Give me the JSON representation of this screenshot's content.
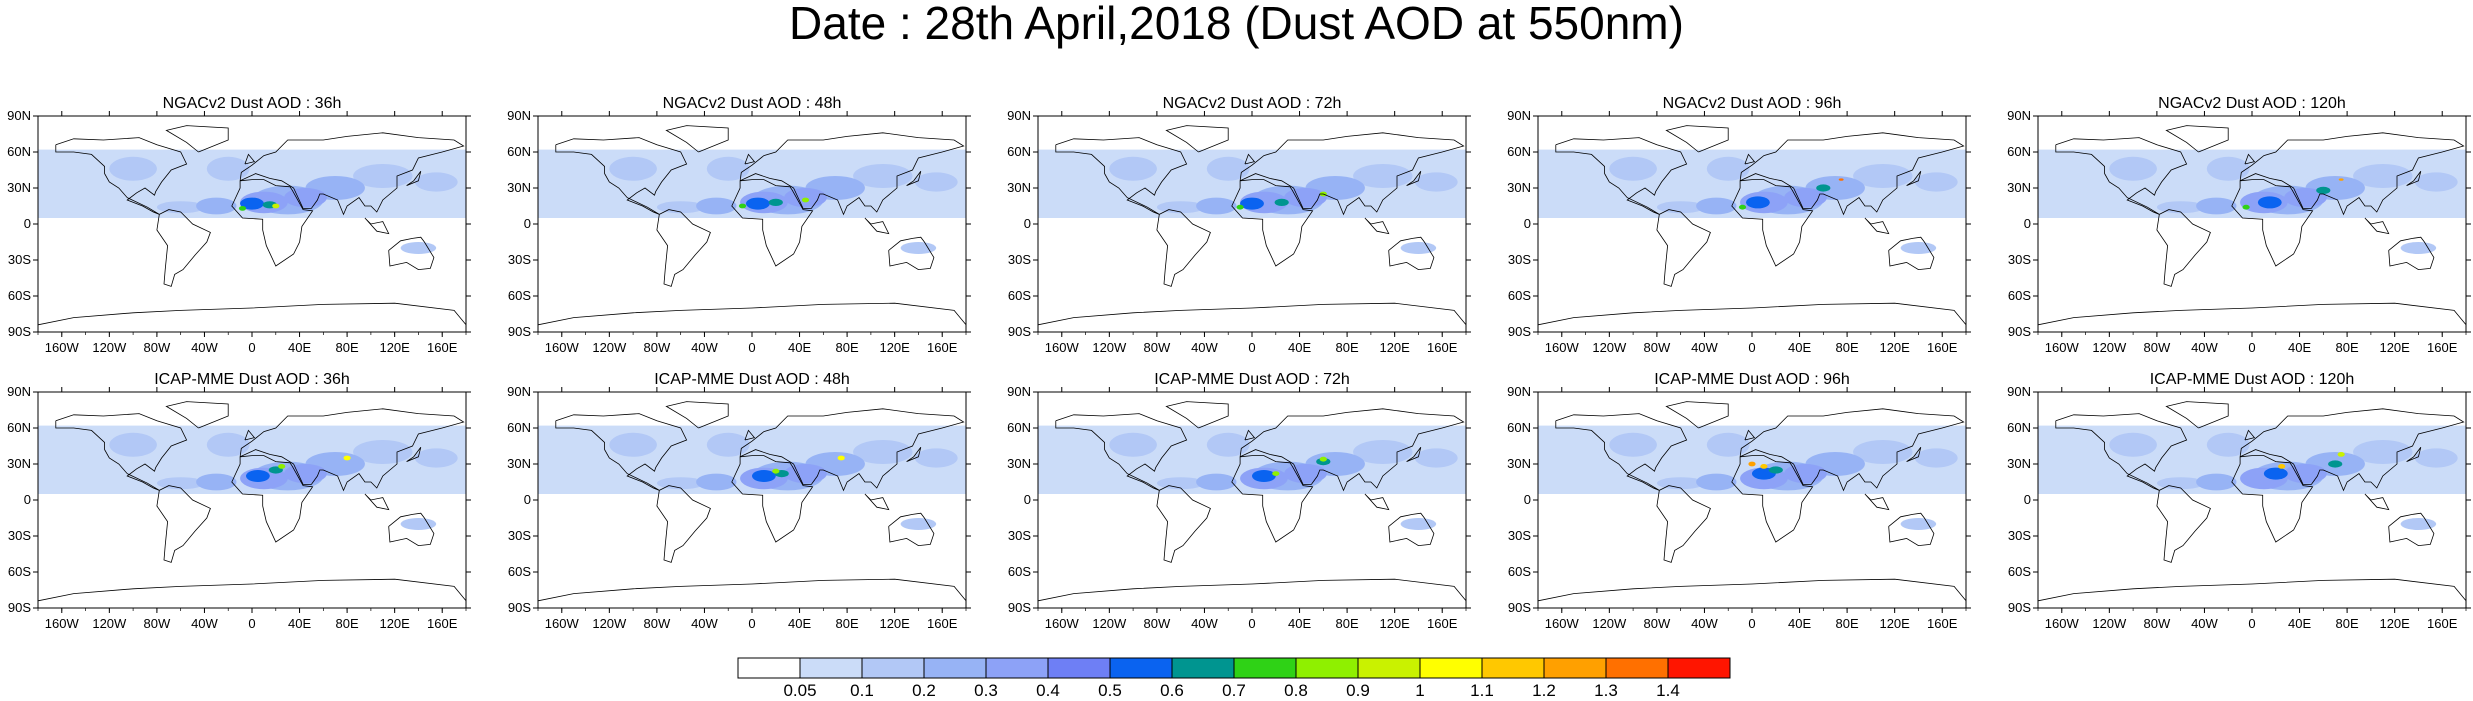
{
  "title": "Date : 28th April,2018 (Dust AOD at 550nm)",
  "icons": [
    "world-map"
  ],
  "chart_data": {
    "type": "heatmap",
    "rows": [
      {
        "model": "NGACv2",
        "titles": [
          "NGACv2 Dust AOD : 36h",
          "NGACv2 Dust AOD : 48h",
          "NGACv2 Dust AOD : 72h",
          "NGACv2 Dust AOD : 96h",
          "NGACv2 Dust AOD : 120h"
        ]
      },
      {
        "model": "ICAP-MME",
        "titles": [
          "ICAP-MME Dust AOD : 36h",
          "ICAP-MME Dust AOD : 48h",
          "ICAP-MME Dust AOD : 72h",
          "ICAP-MME Dust AOD : 96h",
          "ICAP-MME Dust AOD : 120h"
        ]
      }
    ],
    "forecast_hours": [
      36,
      48,
      72,
      96,
      120
    ],
    "lat_ticks": [
      "90N",
      "60N",
      "30N",
      "0",
      "30S",
      "60S",
      "90S"
    ],
    "lat_values": [
      90,
      60,
      30,
      0,
      -30,
      -60,
      -90
    ],
    "lon_ticks": [
      "160W",
      "120W",
      "80W",
      "40W",
      "0",
      "40E",
      "80E",
      "120E",
      "160E"
    ],
    "lon_values": [
      -160,
      -120,
      -80,
      -40,
      0,
      40,
      80,
      120,
      160
    ],
    "xlim": [
      -180,
      180
    ],
    "ylim": [
      -90,
      90
    ],
    "colorbar": {
      "labels": [
        "0.05",
        "0.1",
        "0.2",
        "0.3",
        "0.4",
        "0.5",
        "0.6",
        "0.7",
        "0.8",
        "0.9",
        "1",
        "1.1",
        "1.2",
        "1.3",
        "1.4"
      ],
      "colors": [
        "#ffffff",
        "#cbdcf8",
        "#b2c8f6",
        "#97b3f5",
        "#8da2f7",
        "#6e7ff5",
        "#0a63f0",
        "#009590",
        "#2fd216",
        "#8ff000",
        "#c9f200",
        "#ffff00",
        "#ffc800",
        "#ffa000",
        "#ff7000",
        "#ff1500"
      ]
    },
    "plumes": [
      [
        [
          [
            0.1,
            -100,
            46,
            20,
            10
          ],
          [
            0.1,
            -20,
            46,
            18,
            10
          ],
          [
            0.1,
            110,
            40,
            25,
            10
          ],
          [
            0.1,
            155,
            35,
            18,
            8
          ],
          [
            0.1,
            -60,
            14,
            20,
            5
          ],
          [
            0.2,
            -30,
            15,
            17,
            7
          ],
          [
            0.2,
            30,
            20,
            30,
            12
          ],
          [
            0.2,
            70,
            30,
            25,
            10
          ],
          [
            0.3,
            10,
            18,
            20,
            9
          ],
          [
            0.3,
            45,
            22,
            18,
            8
          ],
          [
            0.5,
            0,
            17,
            10,
            5
          ],
          [
            0.6,
            15,
            16,
            6,
            3
          ],
          [
            0.7,
            -8,
            13,
            3,
            2
          ],
          [
            0.9,
            20,
            15,
            3,
            2
          ],
          [
            0.1,
            140,
            -20,
            15,
            5
          ]
        ],
        [
          [
            0.1,
            -100,
            46,
            20,
            10
          ],
          [
            0.1,
            -20,
            46,
            18,
            10
          ],
          [
            0.1,
            110,
            40,
            25,
            10
          ],
          [
            0.1,
            155,
            35,
            18,
            8
          ],
          [
            0.1,
            -60,
            14,
            20,
            5
          ],
          [
            0.2,
            -30,
            15,
            17,
            7
          ],
          [
            0.2,
            30,
            20,
            30,
            12
          ],
          [
            0.2,
            70,
            30,
            25,
            10
          ],
          [
            0.3,
            10,
            18,
            20,
            9
          ],
          [
            0.3,
            45,
            22,
            18,
            8
          ],
          [
            0.5,
            5,
            17,
            10,
            5
          ],
          [
            0.6,
            20,
            18,
            6,
            3
          ],
          [
            0.7,
            -8,
            15,
            3,
            2
          ],
          [
            0.8,
            45,
            20,
            3,
            2
          ],
          [
            0.1,
            140,
            -20,
            15,
            5
          ]
        ],
        [
          [
            0.1,
            -100,
            46,
            20,
            10
          ],
          [
            0.1,
            -20,
            46,
            18,
            10
          ],
          [
            0.1,
            110,
            40,
            25,
            10
          ],
          [
            0.1,
            155,
            35,
            18,
            8
          ],
          [
            0.1,
            -60,
            14,
            20,
            5
          ],
          [
            0.2,
            -30,
            15,
            17,
            7
          ],
          [
            0.2,
            30,
            20,
            30,
            12
          ],
          [
            0.2,
            70,
            30,
            25,
            10
          ],
          [
            0.3,
            10,
            18,
            20,
            9
          ],
          [
            0.3,
            45,
            22,
            18,
            8
          ],
          [
            0.5,
            0,
            17,
            10,
            5
          ],
          [
            0.6,
            25,
            18,
            6,
            3
          ],
          [
            0.7,
            -10,
            14,
            3,
            2
          ],
          [
            0.8,
            60,
            25,
            3,
            2
          ],
          [
            0.1,
            140,
            -20,
            15,
            5
          ]
        ],
        [
          [
            0.1,
            -100,
            46,
            20,
            10
          ],
          [
            0.1,
            -20,
            46,
            18,
            10
          ],
          [
            0.1,
            110,
            40,
            25,
            10
          ],
          [
            0.1,
            155,
            35,
            18,
            8
          ],
          [
            0.1,
            -60,
            14,
            20,
            5
          ],
          [
            0.2,
            -30,
            15,
            17,
            7
          ],
          [
            0.2,
            30,
            20,
            30,
            12
          ],
          [
            0.2,
            70,
            30,
            25,
            10
          ],
          [
            0.3,
            10,
            18,
            20,
            9
          ],
          [
            0.3,
            45,
            22,
            18,
            8
          ],
          [
            0.5,
            5,
            18,
            10,
            5
          ],
          [
            0.6,
            60,
            30,
            6,
            3
          ],
          [
            0.7,
            -8,
            14,
            3,
            2
          ],
          [
            1.3,
            75,
            37,
            2,
            1
          ],
          [
            0.1,
            140,
            -20,
            15,
            5
          ]
        ],
        [
          [
            0.1,
            -100,
            46,
            20,
            10
          ],
          [
            0.1,
            -20,
            46,
            18,
            10
          ],
          [
            0.1,
            110,
            40,
            25,
            10
          ],
          [
            0.1,
            155,
            35,
            18,
            8
          ],
          [
            0.1,
            -60,
            14,
            20,
            5
          ],
          [
            0.2,
            -30,
            15,
            17,
            7
          ],
          [
            0.2,
            30,
            20,
            30,
            12
          ],
          [
            0.2,
            70,
            30,
            25,
            10
          ],
          [
            0.3,
            10,
            18,
            20,
            9
          ],
          [
            0.3,
            45,
            22,
            18,
            8
          ],
          [
            0.5,
            15,
            18,
            10,
            5
          ],
          [
            0.6,
            60,
            28,
            6,
            3
          ],
          [
            0.7,
            -5,
            14,
            3,
            2
          ],
          [
            1.2,
            75,
            37,
            2,
            1
          ],
          [
            0.1,
            140,
            -20,
            15,
            5
          ]
        ]
      ],
      [
        [
          [
            0.1,
            -100,
            46,
            20,
            10
          ],
          [
            0.1,
            -20,
            46,
            18,
            10
          ],
          [
            0.1,
            110,
            40,
            25,
            10
          ],
          [
            0.1,
            155,
            35,
            18,
            8
          ],
          [
            0.1,
            -60,
            14,
            20,
            5
          ],
          [
            0.2,
            -30,
            15,
            17,
            7
          ],
          [
            0.2,
            30,
            20,
            30,
            12
          ],
          [
            0.2,
            70,
            30,
            25,
            10
          ],
          [
            0.3,
            10,
            18,
            20,
            9
          ],
          [
            0.3,
            45,
            22,
            18,
            8
          ],
          [
            0.5,
            5,
            20,
            10,
            5
          ],
          [
            0.6,
            20,
            25,
            6,
            3
          ],
          [
            0.8,
            25,
            28,
            3,
            2
          ],
          [
            1.0,
            80,
            35,
            3,
            2
          ],
          [
            0.1,
            140,
            -20,
            15,
            5
          ]
        ],
        [
          [
            0.1,
            -100,
            46,
            20,
            10
          ],
          [
            0.1,
            -20,
            46,
            18,
            10
          ],
          [
            0.1,
            110,
            40,
            25,
            10
          ],
          [
            0.1,
            155,
            35,
            18,
            8
          ],
          [
            0.1,
            -60,
            14,
            20,
            5
          ],
          [
            0.2,
            -30,
            15,
            17,
            7
          ],
          [
            0.2,
            30,
            20,
            30,
            12
          ],
          [
            0.2,
            70,
            30,
            25,
            10
          ],
          [
            0.3,
            10,
            18,
            20,
            9
          ],
          [
            0.3,
            45,
            22,
            18,
            8
          ],
          [
            0.5,
            10,
            20,
            10,
            5
          ],
          [
            0.6,
            25,
            22,
            6,
            3
          ],
          [
            0.8,
            20,
            24,
            3,
            2
          ],
          [
            1.0,
            75,
            35,
            3,
            2
          ],
          [
            0.1,
            140,
            -20,
            15,
            5
          ]
        ],
        [
          [
            0.1,
            -100,
            46,
            20,
            10
          ],
          [
            0.1,
            -20,
            46,
            18,
            10
          ],
          [
            0.1,
            110,
            40,
            25,
            10
          ],
          [
            0.1,
            155,
            35,
            18,
            8
          ],
          [
            0.1,
            -60,
            14,
            20,
            5
          ],
          [
            0.2,
            -30,
            15,
            17,
            7
          ],
          [
            0.2,
            30,
            20,
            30,
            12
          ],
          [
            0.2,
            70,
            30,
            25,
            10
          ],
          [
            0.3,
            10,
            18,
            20,
            9
          ],
          [
            0.3,
            45,
            22,
            18,
            8
          ],
          [
            0.5,
            10,
            20,
            10,
            5
          ],
          [
            0.6,
            60,
            32,
            6,
            3
          ],
          [
            0.8,
            20,
            22,
            3,
            2
          ],
          [
            0.8,
            60,
            34,
            3,
            2
          ],
          [
            0.1,
            140,
            -20,
            15,
            5
          ]
        ],
        [
          [
            0.1,
            -100,
            46,
            20,
            10
          ],
          [
            0.1,
            -20,
            46,
            18,
            10
          ],
          [
            0.1,
            110,
            40,
            25,
            10
          ],
          [
            0.1,
            155,
            35,
            18,
            8
          ],
          [
            0.1,
            -60,
            14,
            20,
            5
          ],
          [
            0.2,
            -30,
            15,
            17,
            7
          ],
          [
            0.2,
            30,
            20,
            30,
            12
          ],
          [
            0.2,
            70,
            30,
            25,
            10
          ],
          [
            0.3,
            10,
            18,
            20,
            9
          ],
          [
            0.3,
            45,
            22,
            18,
            8
          ],
          [
            0.5,
            10,
            22,
            10,
            5
          ],
          [
            0.6,
            20,
            25,
            6,
            3
          ],
          [
            1.2,
            0,
            30,
            3,
            2
          ],
          [
            1.1,
            10,
            28,
            3,
            2
          ],
          [
            0.1,
            140,
            -20,
            15,
            5
          ]
        ],
        [
          [
            0.1,
            -100,
            46,
            20,
            10
          ],
          [
            0.1,
            -20,
            46,
            18,
            10
          ],
          [
            0.1,
            110,
            40,
            25,
            10
          ],
          [
            0.1,
            155,
            35,
            18,
            8
          ],
          [
            0.1,
            -60,
            14,
            20,
            5
          ],
          [
            0.2,
            -30,
            15,
            17,
            7
          ],
          [
            0.2,
            30,
            20,
            30,
            12
          ],
          [
            0.2,
            70,
            30,
            25,
            10
          ],
          [
            0.3,
            10,
            18,
            20,
            9
          ],
          [
            0.3,
            45,
            22,
            18,
            8
          ],
          [
            0.5,
            20,
            22,
            10,
            5
          ],
          [
            0.6,
            70,
            30,
            6,
            3
          ],
          [
            1.1,
            25,
            28,
            3,
            2
          ],
          [
            0.9,
            75,
            38,
            3,
            2
          ],
          [
            0.1,
            140,
            -20,
            15,
            5
          ]
        ]
      ]
    ]
  }
}
